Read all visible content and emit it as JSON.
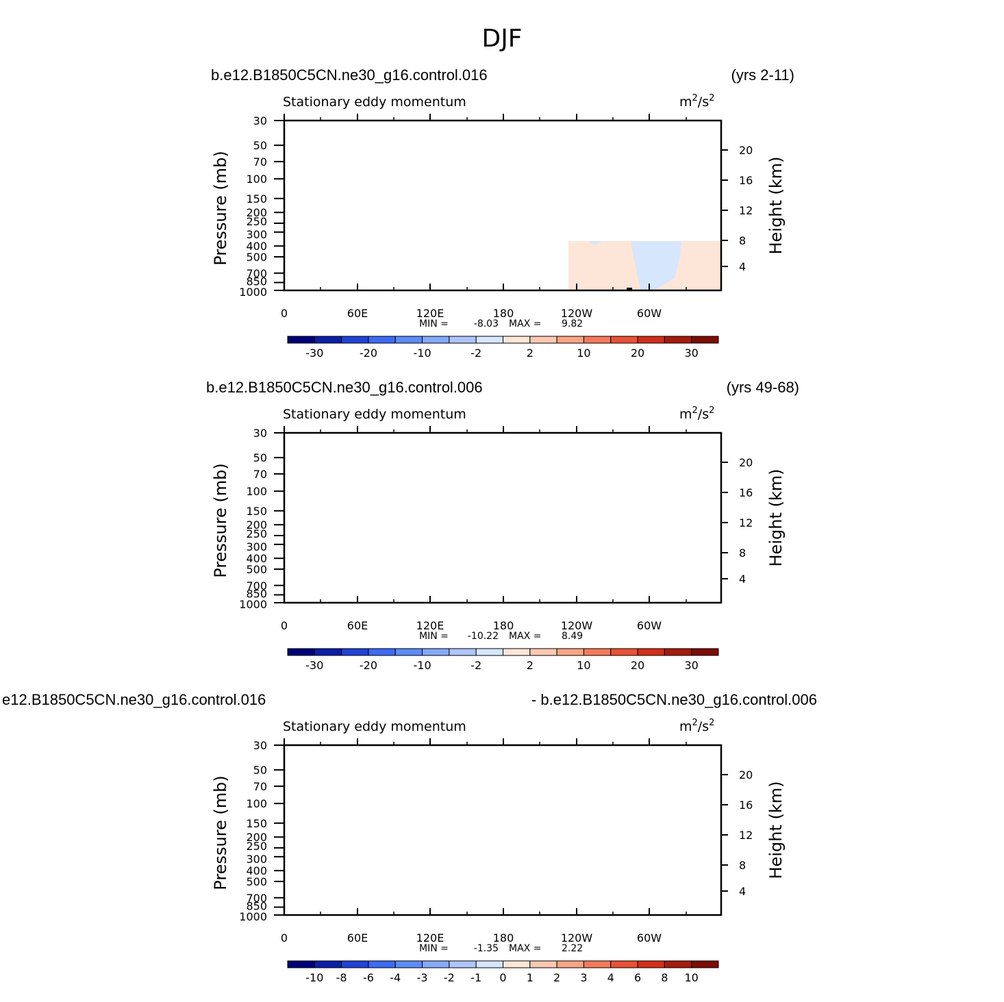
{
  "figure": {
    "title": "DJF",
    "colors": {
      "palette": [
        "#00007a",
        "#0a1fa8",
        "#1f43d6",
        "#3d6bf2",
        "#5c8cf7",
        "#85a9f9",
        "#aec5fb",
        "#d6e6fc",
        "#fde6d8",
        "#fbc8b0",
        "#f9a585",
        "#f57a5a",
        "#e95234",
        "#d22e18",
        "#a51b0c",
        "#7c0d05"
      ],
      "topography": "#000000",
      "frame": "#000000"
    }
  },
  "chart_data": [
    {
      "type": "heatmap",
      "case_name": "b.e12.B1850C5CN.ne30_g16.control.016",
      "period": "(yrs 2-11)",
      "variable": "Stationary eddy momentum",
      "units_base": "m",
      "units_exp1": "2",
      "units_mid": "/s",
      "units_exp2": "2",
      "ylabel": "Pressure (mb)",
      "y2label": "Height (km)",
      "xticks": [
        "0",
        "60E",
        "120E",
        "180",
        "120W",
        "60W"
      ],
      "yticks": [
        "30",
        "50",
        "70",
        "100",
        "150",
        "200",
        "250",
        "300",
        "400",
        "500",
        "700",
        "850",
        "1000"
      ],
      "y2ticks": [
        "20",
        "16",
        "12",
        "8",
        "4"
      ],
      "min_label": "MIN =",
      "min": "-8.03",
      "max_label": "MAX =",
      "max": "9.82",
      "contour_levels": [
        -35,
        -30,
        -25,
        -20,
        -15,
        -10,
        -5,
        -2,
        0,
        2,
        5,
        10,
        15,
        20,
        25,
        30,
        35
      ],
      "colorbar_labels": [
        "-30",
        "-20",
        "-10",
        "-2",
        "2",
        "10",
        "20",
        "30"
      ],
      "colorbar_label_bins": [
        1,
        3,
        5,
        7,
        9,
        11,
        13,
        15
      ]
    },
    {
      "type": "heatmap",
      "case_name": "b.e12.B1850C5CN.ne30_g16.control.006",
      "period": "(yrs 49-68)",
      "variable": "Stationary eddy momentum",
      "units_base": "m",
      "units_exp1": "2",
      "units_mid": "/s",
      "units_exp2": "2",
      "ylabel": "Pressure (mb)",
      "y2label": "Height (km)",
      "xticks": [
        "0",
        "60E",
        "120E",
        "180",
        "120W",
        "60W"
      ],
      "yticks": [
        "30",
        "50",
        "70",
        "100",
        "150",
        "200",
        "250",
        "300",
        "400",
        "500",
        "700",
        "850",
        "1000"
      ],
      "y2ticks": [
        "20",
        "16",
        "12",
        "8",
        "4"
      ],
      "min_label": "MIN =",
      "min": "-10.22",
      "max_label": "MAX =",
      "max": "8.49",
      "contour_levels": [
        -35,
        -30,
        -25,
        -20,
        -15,
        -10,
        -5,
        -2,
        0,
        2,
        5,
        10,
        15,
        20,
        25,
        30,
        35
      ],
      "colorbar_labels": [
        "-30",
        "-20",
        "-10",
        "-2",
        "2",
        "10",
        "20",
        "30"
      ],
      "colorbar_label_bins": [
        1,
        3,
        5,
        7,
        9,
        11,
        13,
        15
      ]
    },
    {
      "type": "heatmap",
      "case_name": "e12.B1850C5CN.ne30_g16.control.016",
      "period": "- b.e12.B1850C5CN.ne30_g16.control.006",
      "variable": "Stationary eddy momentum",
      "units_base": "m",
      "units_exp1": "2",
      "units_mid": "/s",
      "units_exp2": "2",
      "ylabel": "Pressure (mb)",
      "y2label": "Height (km)",
      "xticks": [
        "0",
        "60E",
        "120E",
        "180",
        "120W",
        "60W"
      ],
      "yticks": [
        "30",
        "50",
        "70",
        "100",
        "150",
        "200",
        "250",
        "300",
        "400",
        "500",
        "700",
        "850",
        "1000"
      ],
      "y2ticks": [
        "20",
        "16",
        "12",
        "8",
        "4"
      ],
      "min_label": "MIN =",
      "min": "-1.35",
      "max_label": "MAX =",
      "max": "2.22",
      "contour_levels": [
        -12,
        -10,
        -8,
        -6,
        -4,
        -3,
        -2,
        -1,
        0,
        1,
        2,
        3,
        4,
        6,
        8,
        10,
        12
      ],
      "colorbar_labels": [
        "-10",
        "-8",
        "-6",
        "-4",
        "-3",
        "-2",
        "-1",
        "0",
        "1",
        "2",
        "3",
        "4",
        "6",
        "8",
        "10"
      ],
      "colorbar_label_bins": [
        1,
        2,
        3,
        4,
        5,
        6,
        7,
        8,
        9,
        10,
        11,
        12,
        13,
        14,
        15
      ]
    }
  ]
}
